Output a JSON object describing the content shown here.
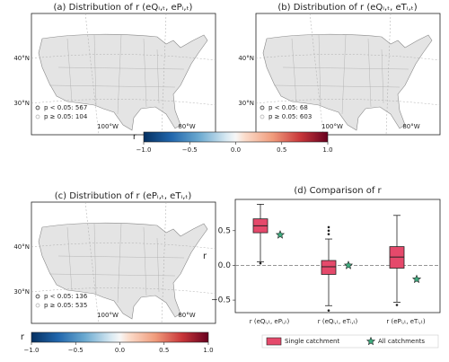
{
  "maps": [
    {
      "title": "(a) Distribution of r (eQᵢ,ₜ, ePᵢ,ₜ)",
      "legend": [
        "p < 0.05: 567",
        "p ≥ 0.05: 104"
      ],
      "lat_labels": [
        "40°N",
        "30°N"
      ],
      "lon_labels": [
        "100°W",
        "80°W"
      ]
    },
    {
      "title": "(b) Distribution of r (eQᵢ,ₜ, eTᵢ,ₜ)",
      "legend": [
        "p < 0.05: 68",
        "p ≥ 0.05: 603"
      ],
      "lat_labels": [
        "40°N",
        "30°N"
      ],
      "lon_labels": [
        "100°W",
        "80°W"
      ]
    },
    {
      "title": "(c) Distribution of r (ePᵢ,ₜ, eTᵢ,ₜ)",
      "legend": [
        "p < 0.05: 136",
        "p ≥ 0.05: 535"
      ],
      "lat_labels": [
        "40°N",
        "30°N"
      ],
      "lon_labels": [
        "100°W",
        "80°W"
      ]
    }
  ],
  "colorbars": [
    {
      "label": "r",
      "lim": [
        -1,
        1
      ],
      "ticks": [
        {
          "value": -1,
          "label": "−1.0"
        },
        {
          "value": -0.5,
          "label": "−0.5"
        },
        {
          "value": 0,
          "label": "0.0"
        },
        {
          "value": 0.5,
          "label": "0.5"
        },
        {
          "value": 1,
          "label": "1.0"
        }
      ]
    },
    {
      "label": "r",
      "lim": [
        -1,
        1
      ],
      "ticks": [
        {
          "value": -1,
          "label": "−1.0"
        },
        {
          "value": -0.5,
          "label": "−0.5"
        },
        {
          "value": 0,
          "label": "0.0"
        },
        {
          "value": 0.5,
          "label": "0.5"
        },
        {
          "value": 1,
          "label": "1.0"
        }
      ]
    }
  ],
  "chart_data": {
    "type": "box",
    "title": "(d) Comparison of r",
    "y_label": "r",
    "categories": [
      "r (eQᵢ,ₜ, ePᵢ,ₜ)",
      "r (eQᵢ,ₜ, eTᵢ,ₜ)",
      "r (ePᵢ,ₜ, eTᵢ,ₜ)"
    ],
    "boxes": [
      {
        "whislo": 0.05,
        "q1": 0.47,
        "median": 0.57,
        "q3": 0.67,
        "whishi": 0.88,
        "fliers": [
          0.03
        ]
      },
      {
        "whislo": -0.58,
        "q1": -0.13,
        "median": -0.02,
        "q3": 0.07,
        "whishi": 0.38,
        "fliers": [
          0.45,
          0.5,
          0.55,
          -0.65
        ]
      },
      {
        "whislo": -0.53,
        "q1": -0.04,
        "median": 0.12,
        "q3": 0.27,
        "whishi": 0.72,
        "fliers": [
          -0.57
        ]
      }
    ],
    "all_catchments": [
      0.44,
      0.0,
      -0.2
    ],
    "box_color": "#e5496b",
    "star_color": "#3fae80",
    "reference_line": 0,
    "legend": [
      "Single catchment",
      "All catchments"
    ],
    "ylim": [
      -0.68,
      0.95
    ],
    "yticks": [
      {
        "value": -0.5,
        "label": "−0.5"
      },
      {
        "value": 0,
        "label": "0.0"
      },
      {
        "value": 0.5,
        "label": "0.5"
      }
    ]
  }
}
